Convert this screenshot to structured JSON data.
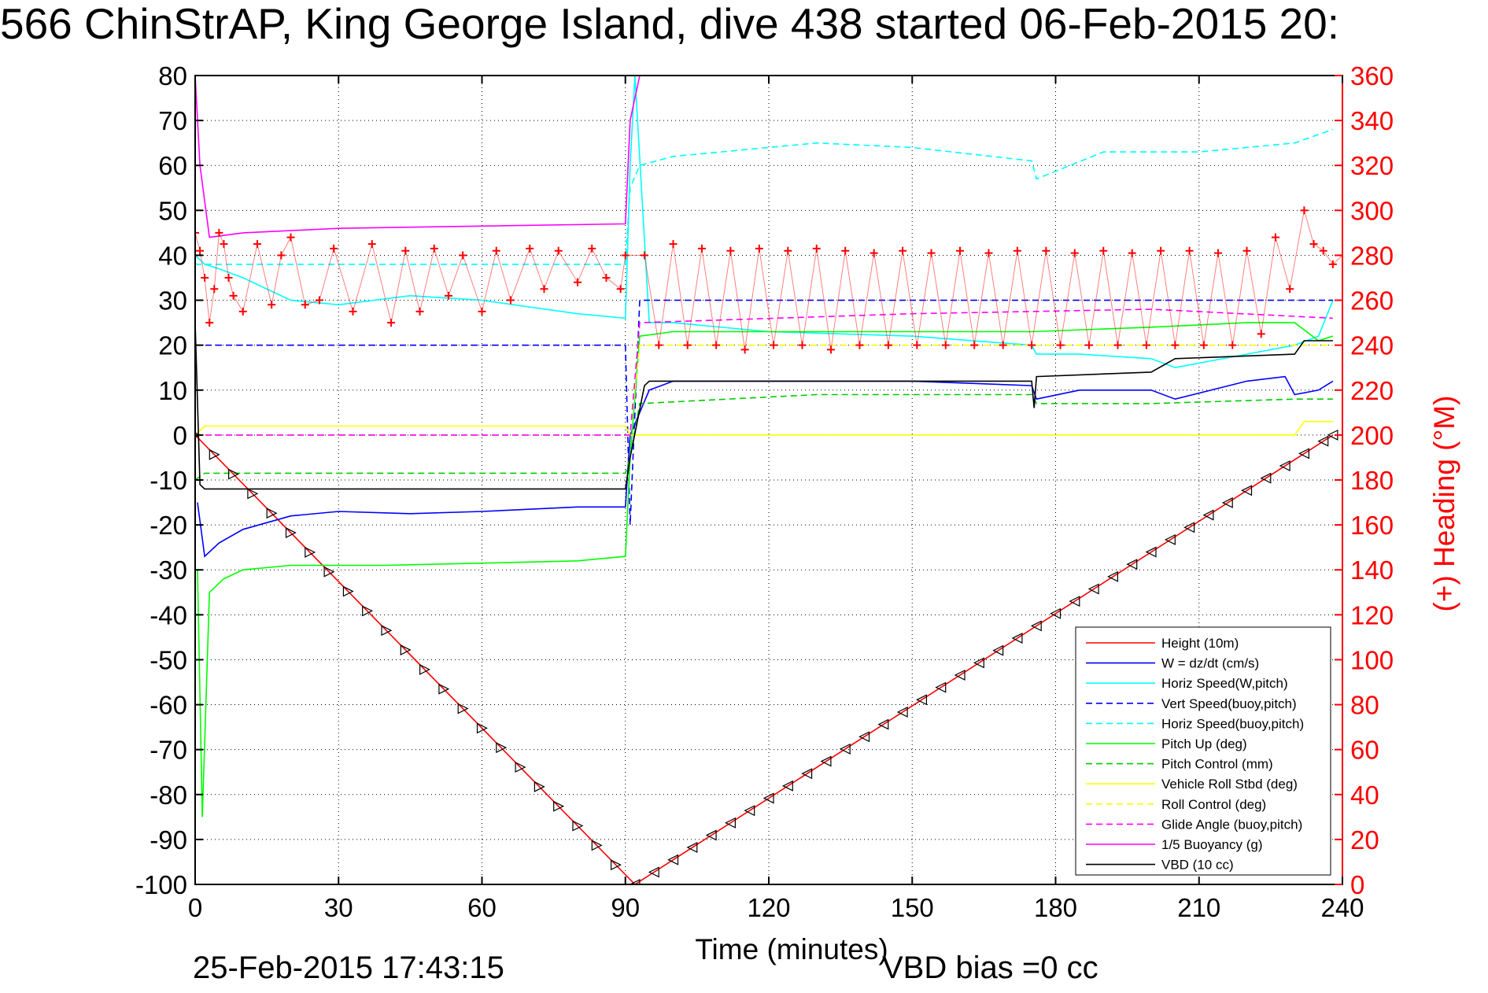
{
  "header": {
    "title": "566 ChinStrAP, King George Island, dive 438 started 06-Feb-2015 20:"
  },
  "footer": {
    "date": "25-Feb-2015 17:43:15",
    "bias": "VBD bias =0 cc"
  },
  "colors": {
    "height": "#ff0000",
    "w": "#0000ff",
    "horiz_speed": "#00ffff",
    "vert_speed_buoy": "#0000ff",
    "horiz_speed_buoy": "#00ffff",
    "pitch_up": "#00ff00",
    "pitch_control": "#00cc00",
    "roll": "#ffff00",
    "roll_control": "#ffff00",
    "glide_angle": "#ff00ff",
    "buoyancy": "#ff00ff",
    "vbd": "#000000",
    "heading": "#ff0000"
  },
  "chart_data": {
    "type": "line",
    "grid": true,
    "legend_position": "bottom-right",
    "xlabel": "Time (minutes)",
    "ylabel_left": "",
    "ylabel_right": "(+) Heading (°M)",
    "xlim": [
      0,
      240
    ],
    "ylim_left": [
      -100,
      80
    ],
    "ylim_right": [
      0,
      360
    ],
    "x_ticks": [
      "0",
      "30",
      "60",
      "90",
      "120",
      "150",
      "180",
      "210",
      "240"
    ],
    "y_ticks_left": [
      "80",
      "70",
      "60",
      "50",
      "40",
      "30",
      "20",
      "10",
      "0",
      "-10",
      "-20",
      "-30",
      "-40",
      "-50",
      "-60",
      "-70",
      "-80",
      "-90",
      "-100"
    ],
    "y_ticks_right": [
      "360",
      "340",
      "320",
      "300",
      "280",
      "260",
      "240",
      "220",
      "200",
      "180",
      "160",
      "140",
      "120",
      "100",
      "80",
      "60",
      "40",
      "20",
      "0"
    ],
    "series": [
      {
        "name": "Height (10m)",
        "style": "solid",
        "color": "#ff0000",
        "x": [
          0,
          92,
          238
        ],
        "y": [
          0,
          -100,
          0
        ]
      },
      {
        "name": "W = dz/dt (cm/s)",
        "style": "solid",
        "color": "#0000ff",
        "x": [
          0.5,
          2,
          5,
          10,
          20,
          30,
          45,
          60,
          80,
          90,
          91,
          93,
          95,
          100,
          120,
          150,
          175,
          176,
          185,
          200,
          205,
          220,
          228,
          230,
          235,
          238
        ],
        "y": [
          -15,
          -27,
          -24,
          -21,
          -18,
          -17,
          -17.5,
          -17,
          -16,
          -16,
          0,
          5,
          10,
          12,
          12,
          12,
          11,
          8,
          10,
          10,
          8,
          12,
          13,
          9,
          10,
          12
        ]
      },
      {
        "name": "Horiz Speed(W,pitch)",
        "style": "solid",
        "color": "#00ffff",
        "x": [
          0,
          2,
          5,
          10,
          20,
          30,
          45,
          60,
          80,
          90,
          91,
          92,
          95,
          100,
          120,
          150,
          175,
          176,
          185,
          200,
          205,
          220,
          230,
          235,
          238
        ],
        "y": [
          40,
          38,
          37,
          35,
          30,
          29,
          31,
          30,
          27,
          26,
          60,
          80,
          25,
          25,
          23,
          22,
          20,
          18,
          18,
          17,
          15,
          18,
          20,
          22,
          30
        ]
      },
      {
        "name": "Vert Speed(buoy,pitch)",
        "style": "dashed",
        "color": "#0000ff",
        "x": [
          0,
          90,
          91,
          93,
          100,
          238
        ],
        "y": [
          20,
          20,
          -20,
          30,
          30,
          30
        ]
      },
      {
        "name": "Horiz Speed(buoy,pitch)",
        "style": "dashed",
        "color": "#00ffff",
        "x": [
          0,
          90,
          91,
          93,
          100,
          130,
          150,
          175,
          176,
          190,
          210,
          230,
          238
        ],
        "y": [
          38,
          38,
          55,
          60,
          62,
          65,
          64,
          61,
          57,
          63,
          63,
          65,
          68
        ]
      },
      {
        "name": "Pitch Up (deg)",
        "style": "solid",
        "color": "#00ff00",
        "x": [
          0.5,
          1.5,
          3,
          6,
          10,
          20,
          40,
          60,
          80,
          90,
          91,
          93,
          100,
          130,
          150,
          175,
          200,
          220,
          230,
          235,
          238
        ],
        "y": [
          -30,
          -85,
          -35,
          -32,
          -30,
          -29,
          -29,
          -28.5,
          -28,
          -27,
          -5,
          22,
          23,
          23,
          23,
          23,
          24,
          25,
          25,
          21,
          22
        ]
      },
      {
        "name": "Pitch Control (mm)",
        "style": "dashed",
        "color": "#00cc00",
        "x": [
          0,
          2,
          90,
          91,
          93,
          130,
          175,
          176,
          200,
          230,
          238
        ],
        "y": [
          -10,
          -8.5,
          -8.5,
          -5,
          7,
          9,
          9,
          7,
          7,
          8,
          8
        ]
      },
      {
        "name": "Vehicle Roll Stbd (deg)",
        "style": "solid",
        "color": "#ffff00",
        "x": [
          0,
          2,
          5,
          10,
          30,
          60,
          90,
          91,
          93,
          120,
          150,
          180,
          210,
          230,
          232,
          238
        ],
        "y": [
          0,
          2,
          2,
          2,
          2,
          2,
          2,
          0,
          0,
          0,
          0,
          0,
          0,
          0,
          3,
          3
        ]
      },
      {
        "name": "Roll Control (deg)",
        "style": "dashed",
        "color": "#ffff00",
        "x": [
          0,
          90,
          91,
          93,
          238
        ],
        "y": [
          0,
          0,
          0,
          20,
          20
        ]
      },
      {
        "name": "Glide Angle (buoy,pitch)",
        "style": "dashed",
        "color": "#ff00ff",
        "x": [
          0,
          90,
          91,
          93,
          150,
          200,
          238
        ],
        "y": [
          0,
          0,
          0,
          25,
          27,
          28,
          26
        ]
      },
      {
        "name": "1/5 Buoyancy (g)",
        "style": "solid",
        "color": "#ff00ff",
        "x": [
          0,
          1,
          3,
          10,
          30,
          60,
          90,
          91,
          93
        ],
        "y": [
          80,
          60,
          44,
          45,
          46,
          46.5,
          47,
          70,
          80
        ]
      },
      {
        "name": "VBD (10 cc)",
        "style": "solid",
        "color": "#000000",
        "x": [
          0,
          1,
          2,
          90,
          91,
          94,
          95,
          175,
          175.5,
          176,
          200,
          205,
          230,
          232,
          238
        ],
        "y": [
          25,
          -11,
          -12,
          -12,
          -5,
          11,
          12,
          12,
          6,
          13,
          14,
          17,
          18,
          21,
          21
        ]
      }
    ],
    "heading_series": {
      "name": "Heading",
      "axis": "right",
      "marker": "+",
      "color": "#ff0000",
      "x": [
        0,
        1,
        2,
        3,
        4,
        5,
        6,
        7,
        8,
        10,
        13,
        16,
        18,
        20,
        23,
        26,
        29,
        33,
        37,
        41,
        44,
        47,
        50,
        53,
        56,
        60,
        63,
        66,
        70,
        73,
        76,
        80,
        83,
        86,
        89,
        90,
        94,
        97,
        100,
        103,
        106,
        109,
        112,
        115,
        118,
        121,
        124,
        127,
        130,
        133,
        136,
        139,
        142,
        145,
        148,
        151,
        154,
        157,
        160,
        163,
        166,
        169,
        172,
        175,
        178,
        181,
        184,
        187,
        190,
        193,
        196,
        199,
        202,
        205,
        208,
        211,
        214,
        217,
        220,
        223,
        226,
        229,
        232,
        234,
        236,
        238,
        240
      ],
      "y": [
        290,
        282,
        270,
        250,
        265,
        290,
        285,
        270,
        262,
        255,
        285,
        258,
        280,
        288,
        258,
        260,
        283,
        255,
        285,
        250,
        282,
        255,
        283,
        262,
        280,
        255,
        282,
        260,
        283,
        265,
        282,
        268,
        283,
        270,
        265,
        280,
        280,
        240,
        285,
        240,
        283,
        240,
        282,
        238,
        283,
        240,
        282,
        240,
        283,
        238,
        282,
        240,
        281,
        240,
        282,
        240,
        281,
        240,
        282,
        240,
        281,
        240,
        282,
        240,
        282,
        240,
        281,
        240,
        282,
        240,
        281,
        240,
        282,
        240,
        282,
        240,
        281,
        240,
        282,
        245,
        288,
        265,
        300,
        285,
        282,
        276,
        280
      ]
    },
    "markers_triangles": {
      "x": [
        0,
        4,
        8,
        12,
        16,
        20,
        24,
        28,
        32,
        36,
        40,
        44,
        48,
        52,
        56,
        60,
        64,
        68,
        72,
        76,
        80,
        84,
        88,
        92,
        96,
        100,
        104,
        108,
        112,
        116,
        120,
        124,
        128,
        132,
        136,
        140,
        144,
        148,
        152,
        156,
        160,
        164,
        168,
        172,
        176,
        180,
        184,
        188,
        192,
        196,
        200,
        204,
        208,
        212,
        216,
        220,
        224,
        228,
        232,
        236,
        238
      ]
    }
  }
}
